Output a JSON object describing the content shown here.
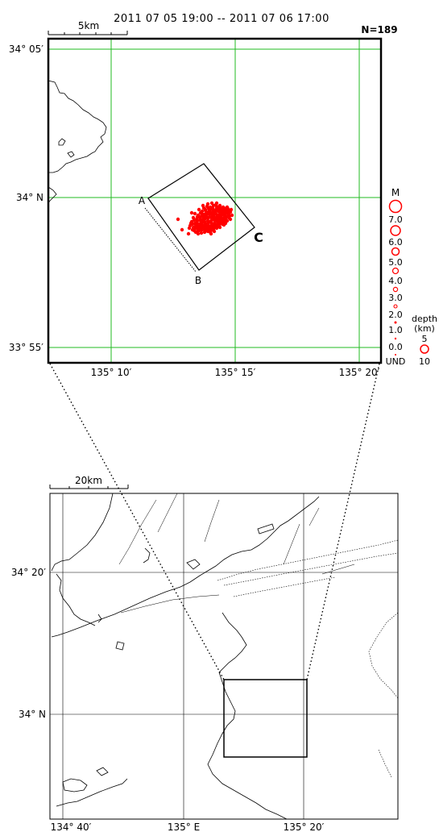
{
  "header": {
    "period": "2011  07  05  19:00  --  2011  07  06  17:00",
    "count": "N=189"
  },
  "detail_map": {
    "scale_label": "5km",
    "lat_labels": [
      "34° 05′",
      "34° N",
      "33° 55′"
    ],
    "lon_labels": [
      "135° 10′",
      "135° 15′",
      "135° 20′"
    ],
    "section_labels": {
      "a": "A",
      "b": "B",
      "c": "C"
    },
    "point_color": "#ff0000",
    "grid_color": "#22bb22",
    "events": [
      [
        252,
        255
      ],
      [
        258,
        253
      ],
      [
        263,
        252
      ],
      [
        268,
        254
      ],
      [
        272,
        256
      ],
      [
        276,
        258
      ],
      [
        280,
        260
      ],
      [
        284,
        262
      ],
      [
        247,
        260
      ],
      [
        251,
        262
      ],
      [
        255,
        261
      ],
      [
        259,
        259
      ],
      [
        264,
        258
      ],
      [
        268,
        260
      ],
      [
        271,
        262
      ],
      [
        275,
        264
      ],
      [
        279,
        266
      ],
      [
        283,
        265
      ],
      [
        286,
        263
      ],
      [
        242,
        265
      ],
      [
        246,
        267
      ],
      [
        250,
        268
      ],
      [
        254,
        266
      ],
      [
        258,
        265
      ],
      [
        262,
        264
      ],
      [
        266,
        266
      ],
      [
        270,
        268
      ],
      [
        274,
        270
      ],
      [
        278,
        270
      ],
      [
        282,
        269
      ],
      [
        285,
        268
      ],
      [
        240,
        270
      ],
      [
        244,
        272
      ],
      [
        248,
        273
      ],
      [
        252,
        272
      ],
      [
        256,
        270
      ],
      [
        260,
        269
      ],
      [
        264,
        271
      ],
      [
        268,
        273
      ],
      [
        272,
        274
      ],
      [
        276,
        272
      ],
      [
        280,
        271
      ],
      [
        284,
        270
      ],
      [
        238,
        275
      ],
      [
        242,
        277
      ],
      [
        246,
        278
      ],
      [
        250,
        277
      ],
      [
        254,
        275
      ],
      [
        258,
        274
      ],
      [
        262,
        276
      ],
      [
        266,
        277
      ],
      [
        270,
        278
      ],
      [
        274,
        276
      ],
      [
        278,
        275
      ],
      [
        282,
        274
      ],
      [
        236,
        280
      ],
      [
        240,
        282
      ],
      [
        244,
        283
      ],
      [
        248,
        281
      ],
      [
        252,
        280
      ],
      [
        256,
        279
      ],
      [
        260,
        281
      ],
      [
        264,
        282
      ],
      [
        268,
        280
      ],
      [
        272,
        279
      ],
      [
        276,
        278
      ],
      [
        280,
        277
      ],
      [
        241,
        286
      ],
      [
        245,
        287
      ],
      [
        249,
        285
      ],
      [
        253,
        284
      ],
      [
        257,
        283
      ],
      [
        261,
        285
      ],
      [
        265,
        284
      ],
      [
        269,
        283
      ],
      [
        273,
        282
      ],
      [
        246,
        290
      ],
      [
        250,
        289
      ],
      [
        254,
        288
      ],
      [
        258,
        287
      ],
      [
        262,
        286
      ],
      [
        266,
        287
      ],
      [
        239,
        278
      ],
      [
        243,
        280
      ],
      [
        247,
        279
      ],
      [
        251,
        276
      ],
      [
        255,
        277
      ],
      [
        259,
        276
      ],
      [
        263,
        278
      ],
      [
        267,
        275
      ],
      [
        271,
        271
      ],
      [
        275,
        267
      ],
      [
        279,
        263
      ],
      [
        283,
        259
      ],
      [
        257,
        256
      ],
      [
        261,
        257
      ],
      [
        265,
        261
      ],
      [
        269,
        257
      ],
      [
        273,
        259
      ],
      [
        277,
        262
      ],
      [
        281,
        264
      ],
      [
        253,
        258
      ],
      [
        249,
        264
      ],
      [
        245,
        269
      ],
      [
        241,
        273
      ],
      [
        237,
        277
      ],
      [
        244,
        276
      ],
      [
        248,
        270
      ],
      [
        252,
        266
      ],
      [
        256,
        263
      ],
      [
        260,
        262
      ],
      [
        264,
        263
      ],
      [
        268,
        265
      ],
      [
        272,
        266
      ],
      [
        276,
        265
      ],
      [
        280,
        268
      ],
      [
        284,
        266
      ],
      [
        287,
        260
      ],
      [
        235,
        283
      ],
      [
        239,
        285
      ],
      [
        243,
        288
      ],
      [
        247,
        284
      ],
      [
        251,
        283
      ],
      [
        255,
        282
      ],
      [
        259,
        280
      ],
      [
        263,
        279
      ],
      [
        267,
        281
      ],
      [
        271,
        277
      ],
      [
        275,
        273
      ],
      [
        279,
        272
      ],
      [
        250,
        274
      ],
      [
        254,
        272
      ],
      [
        258,
        271
      ],
      [
        262,
        270
      ],
      [
        266,
        269
      ],
      [
        270,
        267
      ],
      [
        274,
        263
      ],
      [
        278,
        258
      ],
      [
        282,
        257
      ],
      [
        256,
        268
      ],
      [
        260,
        266
      ],
      [
        264,
        268
      ],
      [
        268,
        271
      ],
      [
        272,
        269
      ],
      [
        246,
        281
      ],
      [
        250,
        279
      ],
      [
        254,
        279
      ],
      [
        258,
        278
      ],
      [
        262,
        274
      ],
      [
        266,
        273
      ],
      [
        270,
        275
      ],
      [
        274,
        274
      ],
      [
        243,
        283
      ],
      [
        247,
        286
      ],
      [
        251,
        285
      ],
      [
        255,
        286
      ],
      [
        259,
        284
      ],
      [
        263,
        282
      ],
      [
        267,
        279
      ],
      [
        271,
        280
      ],
      [
        249,
        272
      ],
      [
        253,
        270
      ],
      [
        257,
        265
      ],
      [
        261,
        260
      ],
      [
        265,
        255
      ],
      [
        269,
        252
      ],
      [
        273,
        255
      ],
      [
        277,
        257
      ],
      [
        221,
        272
      ],
      [
        226,
        285
      ],
      [
        234,
        290
      ],
      [
        238,
        264
      ],
      [
        278,
        279
      ],
      [
        286,
        272
      ],
      [
        288,
        267
      ],
      [
        262,
        290
      ],
      [
        255,
        260
      ],
      [
        259,
        263
      ],
      [
        263,
        266
      ],
      [
        267,
        263
      ],
      [
        271,
        259
      ],
      [
        275,
        261
      ],
      [
        279,
        268
      ],
      [
        283,
        262
      ],
      [
        245,
        274
      ],
      [
        249,
        277
      ],
      [
        253,
        281
      ],
      [
        257,
        285
      ],
      [
        261,
        288
      ]
    ]
  },
  "magnitude_legend": {
    "title": "M",
    "labels": [
      "7.0",
      "6.0",
      "5.0",
      "4.0",
      "3.0",
      "2.0",
      "1.0",
      "0.0",
      "UND"
    ]
  },
  "depth_legend": {
    "title_line1": "depth",
    "title_line2": "(km)",
    "labels": [
      "5",
      "10"
    ]
  },
  "overview_map": {
    "scale_label": "20km",
    "lat_labels": [
      "34° 20′",
      "34° N"
    ],
    "lon_labels": [
      "134° 40′",
      "135° E",
      "135° 20′"
    ]
  }
}
